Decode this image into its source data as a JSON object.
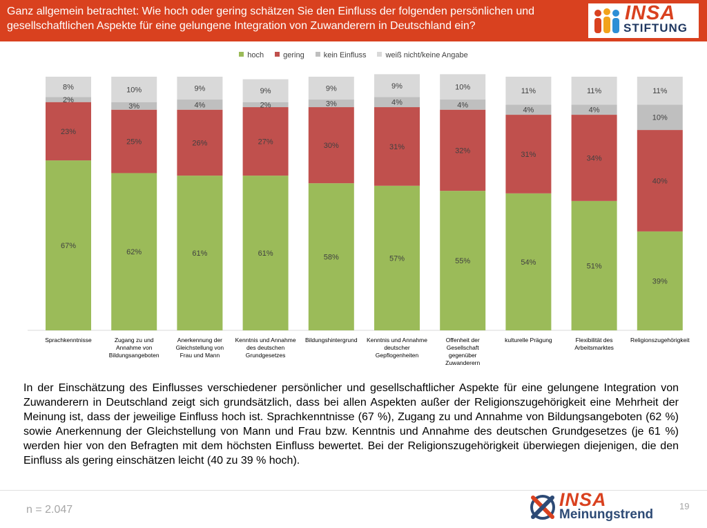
{
  "header": {
    "title": "Ganz allgemein betrachtet: Wie hoch oder gering schätzen Sie den Einfluss der folgenden persönlichen und gesellschaftlichen Aspekte für eine gelungene Integration von Zuwanderern in Deutschland ein?",
    "logo_top": "INSA",
    "logo_bottom": "STIFTUNG"
  },
  "chart_data": {
    "type": "bar",
    "stacked": true,
    "unit": "%",
    "categories": [
      "Sprachkenntnisse",
      "Zugang zu und Annahme von Bildungsangeboten",
      "Anerkennung der Gleichstellung von Frau und Mann",
      "Kenntnis und Annahme des deutschen Grundgesetzes",
      "Bildungshintergrund",
      "Kenntnis und Annahme deutscher Gepflogenheiten",
      "Offenheit der Gesellschaft gegenüber Zuwanderern",
      "kulturelle Prägung",
      "Flexibilität des Arbeitsmarktes",
      "Religionszugehörigkeit"
    ],
    "series": [
      {
        "name": "hoch",
        "color": "#9bbb59",
        "values": [
          67,
          62,
          61,
          61,
          58,
          57,
          55,
          54,
          51,
          39
        ]
      },
      {
        "name": "gering",
        "color": "#c0504d",
        "values": [
          23,
          25,
          26,
          27,
          30,
          31,
          32,
          31,
          34,
          40
        ]
      },
      {
        "name": "kein Einfluss",
        "color": "#bfbfbf",
        "values": [
          2,
          3,
          4,
          2,
          3,
          4,
          4,
          4,
          4,
          10
        ]
      },
      {
        "name": "weiß nicht/keine Angabe",
        "color": "#d9d9d9",
        "values": [
          8,
          10,
          9,
          9,
          9,
          9,
          10,
          11,
          11,
          11
        ]
      }
    ],
    "ylim": [
      0,
      100
    ],
    "legend_position": "top",
    "grid": false,
    "label_color": "#404040"
  },
  "description": "In der Einschätzung des Einflusses verschiedener persönlicher und gesellschaftlicher Aspekte für eine gelungene Integration von Zuwanderern in Deutschland zeigt sich grundsätzlich, dass bei allen Aspekten außer der Religionszugehörigkeit eine Mehrheit der Meinung ist, dass der jeweilige Einfluss hoch ist. Sprachkenntnisse (67 %), Zugang zu und Annahme von Bildungsangeboten (62 %) sowie Anerkennung der Gleichstellung von Mann und Frau bzw. Kenntnis und Annahme des deutschen Grundgesetzes (je 61 %) werden hier von den Befragten mit dem höchsten Einfluss bewertet. Bei der Religionszugehörigkeit überwiegen diejenigen, die den Einfluss als gering einschätzen leicht (40 zu 39 % hoch).",
  "footer": {
    "sample_size": "n = 2.047",
    "page_number": "19",
    "logo_top": "INSA",
    "logo_bottom": "Meinungstrend"
  },
  "colors": {
    "header_bg": "#d9411f",
    "brand_red": "#d9411f",
    "brand_blue": "#2d4a75"
  }
}
